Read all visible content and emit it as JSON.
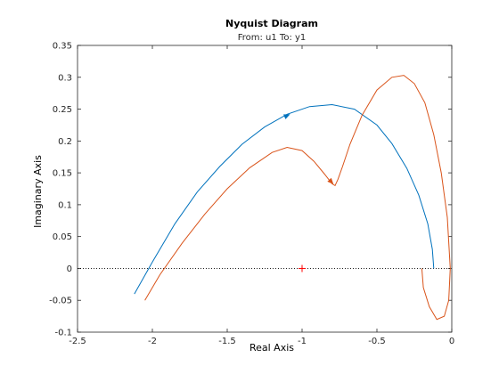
{
  "chart_data": {
    "type": "line",
    "title": "Nyquist Diagram",
    "subtitle": "From: u1  To: y1",
    "xlabel": "Real Axis",
    "ylabel": "Imaginary Axis",
    "xlim": [
      -2.5,
      0
    ],
    "ylim": [
      -0.1,
      0.35
    ],
    "xticks": [
      -2.5,
      -2,
      -1.5,
      -1,
      -0.5,
      0
    ],
    "xtick_labels": [
      "-2.5",
      "-2",
      "-1.5",
      "-1",
      "-0.5",
      "0"
    ],
    "yticks": [
      -0.1,
      -0.05,
      0,
      0.05,
      0.1,
      0.15,
      0.2,
      0.25,
      0.3,
      0.35
    ],
    "ytick_labels": [
      "-0.1",
      "-0.05",
      "0",
      "0.05",
      "0.1",
      "0.15",
      "0.2",
      "0.25",
      "0.3",
      "0.35"
    ],
    "grid": false,
    "critical_point": [
      -1,
      0
    ],
    "series": [
      {
        "color": "#0072BD",
        "x": [
          -2.12,
          -2.0,
          -1.85,
          -1.7,
          -1.55,
          -1.4,
          -1.25,
          -1.1,
          -0.95,
          -0.8,
          -0.65,
          -0.5,
          -0.4,
          -0.3,
          -0.22,
          -0.16,
          -0.13,
          -0.12
        ],
        "y": [
          -0.04,
          0.01,
          0.07,
          0.12,
          0.16,
          0.195,
          0.222,
          0.242,
          0.254,
          0.257,
          0.25,
          0.225,
          0.196,
          0.157,
          0.115,
          0.07,
          0.03,
          0.0
        ],
        "arrows": [
          {
            "x": -1.08,
            "y": 0.242
          }
        ]
      },
      {
        "color": "#D95319",
        "x": [
          -2.05,
          -1.95,
          -1.8,
          -1.65,
          -1.5,
          -1.35,
          -1.2,
          -1.1,
          -1.0,
          -0.92,
          -0.85,
          -0.8,
          -0.78,
          -0.76,
          -0.73,
          -0.68,
          -0.6,
          -0.5,
          -0.4,
          -0.32,
          -0.25,
          -0.18,
          -0.12,
          -0.07,
          -0.03,
          -0.01,
          -0.02,
          -0.05,
          -0.1,
          -0.15,
          -0.19,
          -0.2
        ],
        "y": [
          -0.05,
          -0.01,
          0.04,
          0.085,
          0.125,
          0.158,
          0.182,
          0.19,
          0.185,
          0.168,
          0.148,
          0.133,
          0.13,
          0.14,
          0.16,
          0.195,
          0.24,
          0.28,
          0.3,
          0.303,
          0.29,
          0.26,
          0.21,
          0.15,
          0.08,
          0.0,
          -0.05,
          -0.075,
          -0.08,
          -0.06,
          -0.03,
          0.0
        ],
        "arrows": [
          {
            "x": -0.79,
            "y": 0.132
          }
        ]
      }
    ]
  }
}
